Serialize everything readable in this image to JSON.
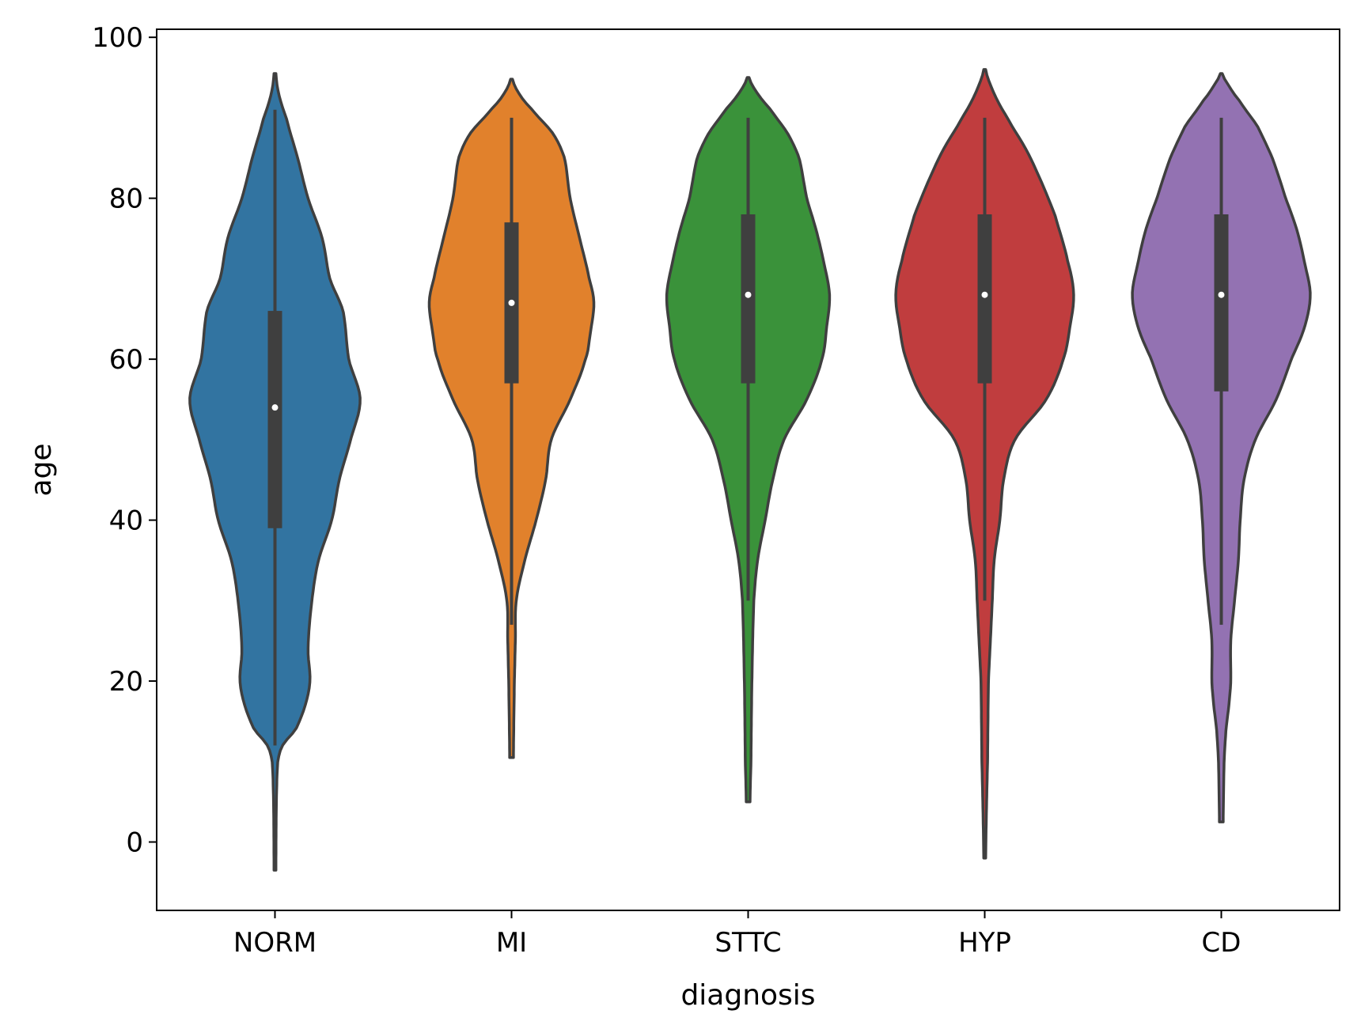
{
  "chart_data": {
    "type": "violin",
    "title": "",
    "xlabel": "diagnosis",
    "ylabel": "age",
    "ylim": [
      -8.5,
      101
    ],
    "yticks": [
      0,
      20,
      40,
      60,
      80,
      100
    ],
    "grid": false,
    "legend": "none",
    "categories": [
      "NORM",
      "MI",
      "STTC",
      "HYP",
      "CD"
    ],
    "colors": {
      "NORM": "#3274a1",
      "MI": "#e1812c",
      "STTC": "#3a923a",
      "HYP": "#c03d3e",
      "CD": "#9372b2",
      "outline": "#3f3f3f",
      "median_dot": "#ffffff"
    },
    "series": [
      {
        "category": "NORM",
        "min": -3.5,
        "max": 95.5,
        "whisker_low": 12,
        "whisker_high": 91,
        "q1": 39,
        "median": 54,
        "q3": 66,
        "density": [
          [
            -3.5,
            0.01
          ],
          [
            5,
            0.015
          ],
          [
            10,
            0.03
          ],
          [
            12,
            0.08
          ],
          [
            14,
            0.22
          ],
          [
            17,
            0.32
          ],
          [
            20,
            0.37
          ],
          [
            24,
            0.35
          ],
          [
            30,
            0.39
          ],
          [
            35,
            0.46
          ],
          [
            40,
            0.6
          ],
          [
            45,
            0.68
          ],
          [
            50,
            0.8
          ],
          [
            55,
            0.9
          ],
          [
            60,
            0.78
          ],
          [
            66,
            0.72
          ],
          [
            70,
            0.58
          ],
          [
            75,
            0.5
          ],
          [
            80,
            0.35
          ],
          [
            85,
            0.24
          ],
          [
            90,
            0.12
          ],
          [
            93,
            0.04
          ],
          [
            95.5,
            0.01
          ]
        ]
      },
      {
        "category": "MI",
        "min": 10.5,
        "max": 94.8,
        "whisker_low": 27,
        "whisker_high": 90,
        "q1": 57,
        "median": 67,
        "q3": 77,
        "density": [
          [
            10.5,
            0.02
          ],
          [
            20,
            0.03
          ],
          [
            25,
            0.04
          ],
          [
            30,
            0.05
          ],
          [
            35,
            0.14
          ],
          [
            40,
            0.26
          ],
          [
            45,
            0.36
          ],
          [
            50,
            0.42
          ],
          [
            55,
            0.62
          ],
          [
            60,
            0.78
          ],
          [
            63,
            0.83
          ],
          [
            67,
            0.87
          ],
          [
            70,
            0.82
          ],
          [
            75,
            0.72
          ],
          [
            80,
            0.62
          ],
          [
            85,
            0.56
          ],
          [
            88,
            0.44
          ],
          [
            91,
            0.22
          ],
          [
            93,
            0.08
          ],
          [
            94.8,
            0.01
          ]
        ]
      },
      {
        "category": "STTC",
        "min": 5,
        "max": 95,
        "whisker_low": 30,
        "whisker_high": 90,
        "q1": 57,
        "median": 68,
        "q3": 78,
        "density": [
          [
            5,
            0.02
          ],
          [
            10,
            0.03
          ],
          [
            20,
            0.04
          ],
          [
            30,
            0.06
          ],
          [
            35,
            0.1
          ],
          [
            40,
            0.18
          ],
          [
            45,
            0.26
          ],
          [
            50,
            0.38
          ],
          [
            55,
            0.62
          ],
          [
            60,
            0.78
          ],
          [
            64,
            0.83
          ],
          [
            68,
            0.86
          ],
          [
            72,
            0.8
          ],
          [
            76,
            0.72
          ],
          [
            80,
            0.62
          ],
          [
            85,
            0.54
          ],
          [
            88,
            0.42
          ],
          [
            91,
            0.24
          ],
          [
            93,
            0.1
          ],
          [
            95,
            0.01
          ]
        ]
      },
      {
        "category": "HYP",
        "min": -2,
        "max": 96,
        "whisker_low": 30,
        "whisker_high": 90,
        "q1": 57,
        "median": 68,
        "q3": 78,
        "density": [
          [
            -2,
            0.01
          ],
          [
            5,
            0.02
          ],
          [
            10,
            0.03
          ],
          [
            20,
            0.04
          ],
          [
            25,
            0.06
          ],
          [
            30,
            0.08
          ],
          [
            35,
            0.1
          ],
          [
            40,
            0.16
          ],
          [
            45,
            0.2
          ],
          [
            50,
            0.32
          ],
          [
            55,
            0.65
          ],
          [
            60,
            0.83
          ],
          [
            64,
            0.9
          ],
          [
            68,
            0.94
          ],
          [
            72,
            0.88
          ],
          [
            78,
            0.74
          ],
          [
            82,
            0.6
          ],
          [
            86,
            0.44
          ],
          [
            90,
            0.24
          ],
          [
            93,
            0.1
          ],
          [
            96,
            0.01
          ]
        ]
      },
      {
        "category": "CD",
        "min": 2.5,
        "max": 95.5,
        "whisker_low": 27,
        "whisker_high": 90,
        "q1": 56,
        "median": 68,
        "q3": 78,
        "density": [
          [
            2.5,
            0.02
          ],
          [
            10,
            0.03
          ],
          [
            14,
            0.05
          ],
          [
            17,
            0.08
          ],
          [
            20,
            0.1
          ],
          [
            25,
            0.1
          ],
          [
            30,
            0.14
          ],
          [
            35,
            0.18
          ],
          [
            40,
            0.2
          ],
          [
            45,
            0.24
          ],
          [
            50,
            0.36
          ],
          [
            55,
            0.58
          ],
          [
            60,
            0.74
          ],
          [
            64,
            0.88
          ],
          [
            68,
            0.94
          ],
          [
            72,
            0.88
          ],
          [
            76,
            0.8
          ],
          [
            80,
            0.68
          ],
          [
            85,
            0.54
          ],
          [
            89,
            0.38
          ],
          [
            92,
            0.2
          ],
          [
            94,
            0.08
          ],
          [
            95.5,
            0.01
          ]
        ]
      }
    ]
  }
}
